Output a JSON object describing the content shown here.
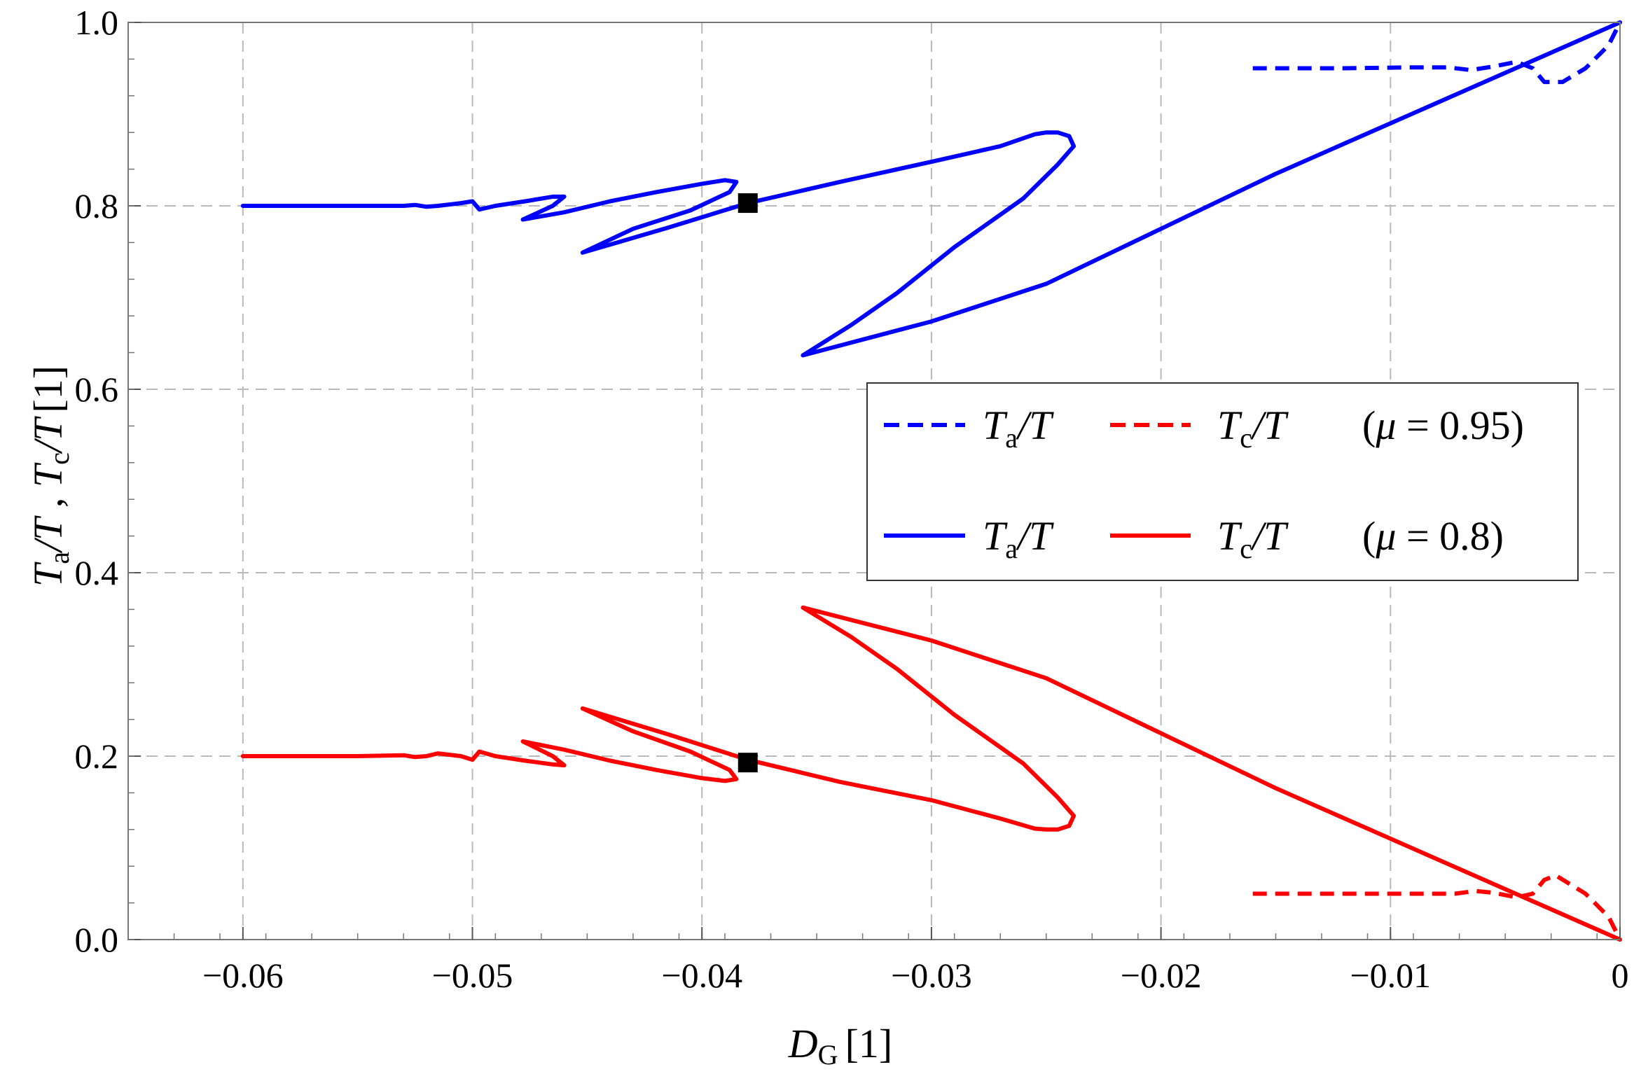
{
  "chart_data": {
    "type": "line",
    "xlabel": "D_G [1]",
    "ylabel": "T_a/T , T_c/T [1]",
    "xlim": [
      -0.065,
      0
    ],
    "ylim": [
      0,
      1
    ],
    "xticks": [
      -0.06,
      -0.05,
      -0.04,
      -0.03,
      -0.02,
      -0.01,
      0
    ],
    "xtick_labels": [
      "−0.06",
      "−0.05",
      "−0.04",
      "−0.03",
      "−0.02",
      "−0.01",
      "0"
    ],
    "yticks": [
      0,
      0.2,
      0.4,
      0.6,
      0.8,
      1.0
    ],
    "ytick_labels": [
      "0.0",
      "0.2",
      "0.4",
      "0.6",
      "0.8",
      "1.0"
    ],
    "grid": true,
    "legend_position": "center-right",
    "legend": [
      {
        "series": "Ta_mu095",
        "label": "Ta/T",
        "style": "dashed",
        "color": "#0000ff"
      },
      {
        "series": "Tc_mu095",
        "label": "Tc/T",
        "style": "dashed",
        "color": "#ff0000",
        "suffix": "(μ = 0.95)"
      },
      {
        "series": "Ta_mu08",
        "label": "Ta/T",
        "style": "solid",
        "color": "#0000ff"
      },
      {
        "series": "Tc_mu08",
        "label": "Tc/T",
        "style": "solid",
        "color": "#ff0000",
        "suffix": "(μ = 0.8)"
      }
    ],
    "series": [
      {
        "id": "Ta_mu095",
        "color": "#0000ff",
        "style": "dashed",
        "points": [
          [
            -0.016,
            0.95
          ],
          [
            -0.012,
            0.95
          ],
          [
            -0.009,
            0.951
          ],
          [
            -0.0075,
            0.951
          ],
          [
            -0.0065,
            0.948
          ],
          [
            -0.0055,
            0.952
          ],
          [
            -0.0045,
            0.957
          ],
          [
            -0.0038,
            0.95
          ],
          [
            -0.0033,
            0.935
          ],
          [
            -0.0025,
            0.935
          ],
          [
            -0.0015,
            0.95
          ],
          [
            -0.0005,
            0.975
          ],
          [
            0,
            1.0
          ]
        ]
      },
      {
        "id": "Tc_mu095",
        "color": "#ff0000",
        "style": "dashed",
        "points": [
          [
            -0.016,
            0.05
          ],
          [
            -0.012,
            0.05
          ],
          [
            -0.009,
            0.05
          ],
          [
            -0.0072,
            0.05
          ],
          [
            -0.0063,
            0.053
          ],
          [
            -0.0055,
            0.051
          ],
          [
            -0.0045,
            0.046
          ],
          [
            -0.0038,
            0.05
          ],
          [
            -0.0033,
            0.065
          ],
          [
            -0.0028,
            0.07
          ],
          [
            -0.0015,
            0.05
          ],
          [
            -0.0005,
            0.025
          ],
          [
            0,
            0.0
          ]
        ]
      },
      {
        "id": "Ta_mu08",
        "color": "#0000ff",
        "style": "solid",
        "points": [
          [
            -0.06,
            0.8
          ],
          [
            -0.055,
            0.8
          ],
          [
            -0.053,
            0.8
          ],
          [
            -0.0525,
            0.801
          ],
          [
            -0.052,
            0.799
          ],
          [
            -0.0515,
            0.8
          ],
          [
            -0.0505,
            0.803
          ],
          [
            -0.05,
            0.805
          ],
          [
            -0.0497,
            0.796
          ],
          [
            -0.049,
            0.8
          ],
          [
            -0.0477,
            0.805
          ],
          [
            -0.0465,
            0.81
          ],
          [
            -0.046,
            0.81
          ],
          [
            -0.0465,
            0.8
          ],
          [
            -0.0478,
            0.785
          ],
          [
            -0.046,
            0.793
          ],
          [
            -0.044,
            0.805
          ],
          [
            -0.042,
            0.815
          ],
          [
            -0.04,
            0.824
          ],
          [
            -0.039,
            0.828
          ],
          [
            -0.0385,
            0.826
          ],
          [
            -0.0388,
            0.815
          ],
          [
            -0.0405,
            0.795
          ],
          [
            -0.043,
            0.775
          ],
          [
            -0.0452,
            0.749
          ],
          [
            -0.0415,
            0.776
          ],
          [
            -0.038,
            0.803
          ],
          [
            -0.034,
            0.826
          ],
          [
            -0.03,
            0.848
          ],
          [
            -0.027,
            0.865
          ],
          [
            -0.0255,
            0.878
          ],
          [
            -0.025,
            0.88
          ],
          [
            -0.0245,
            0.88
          ],
          [
            -0.024,
            0.876
          ],
          [
            -0.0238,
            0.865
          ],
          [
            -0.0245,
            0.845
          ],
          [
            -0.026,
            0.808
          ],
          [
            -0.029,
            0.755
          ],
          [
            -0.0315,
            0.705
          ],
          [
            -0.0335,
            0.67
          ],
          [
            -0.0356,
            0.637
          ],
          [
            -0.03,
            0.674
          ],
          [
            -0.025,
            0.715
          ],
          [
            -0.02,
            0.775
          ],
          [
            -0.015,
            0.835
          ],
          [
            -0.01,
            0.89
          ],
          [
            -0.005,
            0.945
          ],
          [
            0,
            1.0
          ]
        ]
      },
      {
        "id": "Tc_mu08",
        "color": "#ff0000",
        "style": "solid",
        "points": [
          [
            -0.06,
            0.2
          ],
          [
            -0.055,
            0.2
          ],
          [
            -0.053,
            0.201
          ],
          [
            -0.0525,
            0.199
          ],
          [
            -0.052,
            0.2
          ],
          [
            -0.0515,
            0.203
          ],
          [
            -0.0505,
            0.2
          ],
          [
            -0.05,
            0.196
          ],
          [
            -0.0497,
            0.205
          ],
          [
            -0.049,
            0.2
          ],
          [
            -0.0477,
            0.195
          ],
          [
            -0.0465,
            0.191
          ],
          [
            -0.046,
            0.19
          ],
          [
            -0.0465,
            0.2
          ],
          [
            -0.0478,
            0.216
          ],
          [
            -0.046,
            0.207
          ],
          [
            -0.044,
            0.195
          ],
          [
            -0.042,
            0.185
          ],
          [
            -0.04,
            0.176
          ],
          [
            -0.039,
            0.173
          ],
          [
            -0.0385,
            0.175
          ],
          [
            -0.0388,
            0.185
          ],
          [
            -0.0405,
            0.205
          ],
          [
            -0.043,
            0.227
          ],
          [
            -0.0452,
            0.252
          ],
          [
            -0.0415,
            0.224
          ],
          [
            -0.038,
            0.196
          ],
          [
            -0.034,
            0.172
          ],
          [
            -0.03,
            0.152
          ],
          [
            -0.027,
            0.132
          ],
          [
            -0.0255,
            0.121
          ],
          [
            -0.025,
            0.12
          ],
          [
            -0.0245,
            0.12
          ],
          [
            -0.024,
            0.124
          ],
          [
            -0.0238,
            0.135
          ],
          [
            -0.0245,
            0.155
          ],
          [
            -0.026,
            0.192
          ],
          [
            -0.029,
            0.245
          ],
          [
            -0.0315,
            0.295
          ],
          [
            -0.0335,
            0.33
          ],
          [
            -0.0356,
            0.362
          ],
          [
            -0.03,
            0.326
          ],
          [
            -0.025,
            0.285
          ],
          [
            -0.02,
            0.225
          ],
          [
            -0.015,
            0.165
          ],
          [
            -0.01,
            0.11
          ],
          [
            -0.005,
            0.055
          ],
          [
            0,
            0.0
          ]
        ]
      }
    ],
    "markers": [
      {
        "x": -0.038,
        "y": 0.803,
        "shape": "square",
        "color": "#000000"
      },
      {
        "x": -0.038,
        "y": 0.193,
        "shape": "square",
        "color": "#000000"
      }
    ]
  }
}
